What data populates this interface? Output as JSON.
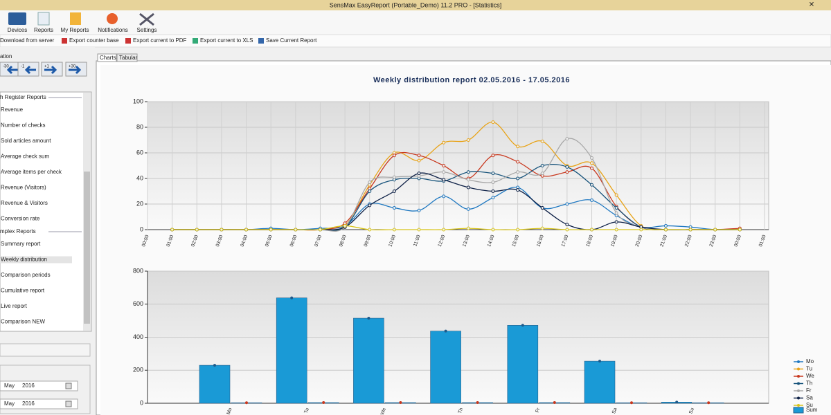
{
  "window": {
    "title": "SensMax EasyReport (Portable_Demo) 11.2 PRO - [Statistics]"
  },
  "toolbar": {
    "buttons": [
      "Devices",
      "Reports",
      "My Reports",
      "Notifications",
      "Settings"
    ]
  },
  "actions": [
    "Download from server",
    "Export counter base",
    "Export current to PDF",
    "Export current to XLS",
    "Save Current Report"
  ],
  "sidebar": {
    "section": "ation",
    "nav_buttons": [
      "-30",
      "-1",
      "+1",
      "+30"
    ],
    "groups": [
      {
        "title": "h Register Reports",
        "items": [
          "Revenue",
          "Number of checks",
          "Sold articles amount",
          "Average check sum",
          "Average items per check",
          "Revenue (Visitors)",
          "Revenue & Visitors",
          "Conversion rate"
        ]
      },
      {
        "title": "mplex Reports",
        "items": [
          "Summary report",
          "Weekly distribution",
          "Comparison periods",
          "Cumulative report",
          "Live report",
          "Comparison NEW"
        ]
      }
    ],
    "dates": [
      {
        "month": "May",
        "year": "2016"
      },
      {
        "month": "May",
        "year": "2016"
      }
    ]
  },
  "tabs": [
    "Charts",
    "Tabular"
  ],
  "chart_data": [
    {
      "type": "line",
      "title": "Weekly distribution report 02.05.2016 - 17.05.2016",
      "categories": [
        "00:00",
        "01:00",
        "02:00",
        "03:00",
        "04:00",
        "05:00",
        "06:00",
        "07:00",
        "08:00",
        "09:00",
        "10:00",
        "11:00",
        "12:00",
        "13:00",
        "14:00",
        "15:00",
        "16:00",
        "17:00",
        "18:00",
        "19:00",
        "20:00",
        "21:00",
        "22:00",
        "23:00",
        "00:00",
        "01:00"
      ],
      "series": [
        {
          "name": "Mo",
          "color": "#1f78c1",
          "values": [
            null,
            0,
            0,
            0,
            0,
            1,
            0,
            1,
            3,
            20,
            17,
            15,
            26,
            16,
            25,
            33,
            17,
            20,
            23,
            11,
            2,
            3,
            2,
            0,
            0,
            null
          ]
        },
        {
          "name": "Tu",
          "color": "#e8a317",
          "values": [
            null,
            0,
            0,
            0,
            0,
            0,
            0,
            0,
            3,
            35,
            60,
            54,
            68,
            70,
            84,
            65,
            69,
            50,
            52,
            27,
            3,
            0,
            0,
            0,
            0,
            null
          ]
        },
        {
          "name": "We",
          "color": "#c8381e",
          "values": [
            null,
            0,
            0,
            0,
            0,
            0,
            0,
            0,
            5,
            32,
            58,
            58,
            50,
            40,
            58,
            53,
            42,
            45,
            48,
            18,
            2,
            0,
            0,
            0,
            1,
            null
          ]
        },
        {
          "name": "Th",
          "color": "#15527a",
          "values": [
            null,
            0,
            0,
            0,
            0,
            0,
            0,
            0,
            2,
            30,
            39,
            40,
            38,
            45,
            44,
            40,
            50,
            49,
            35,
            17,
            2,
            0,
            0,
            0,
            0,
            null
          ]
        },
        {
          "name": "Fr",
          "color": "#a8a8a8",
          "values": [
            null,
            0,
            0,
            0,
            0,
            0,
            0,
            0,
            2,
            37,
            41,
            42,
            45,
            39,
            37,
            45,
            44,
            71,
            56,
            13,
            2,
            0,
            0,
            0,
            0,
            null
          ]
        },
        {
          "name": "Sa",
          "color": "#0c1f45",
          "values": [
            null,
            0,
            0,
            0,
            0,
            0,
            0,
            0,
            2,
            19,
            30,
            44,
            39,
            33,
            30,
            31,
            17,
            4,
            0,
            6,
            2,
            0,
            0,
            0,
            0,
            null
          ]
        },
        {
          "name": "Su",
          "color": "#d8c41a",
          "values": [
            null,
            0,
            0,
            0,
            0,
            0,
            0,
            0,
            3,
            0,
            0,
            0,
            0,
            1,
            0,
            0,
            1,
            0,
            0,
            0,
            0,
            0,
            0,
            0,
            0,
            null
          ]
        }
      ],
      "ylim": [
        0,
        100
      ],
      "yticks": [
        0,
        20,
        40,
        60,
        80,
        100
      ],
      "grid": true
    },
    {
      "type": "bar",
      "categories": [
        "Mo",
        "Tu",
        "We",
        "Th",
        "Fr",
        "Sa",
        "Su"
      ],
      "series": [
        {
          "name": "Sum",
          "color": "#1a9ad6",
          "marker_color": "#1f5a8a",
          "values": [
            230,
            638,
            515,
            437,
            472,
            255,
            7
          ]
        },
        {
          "color": "#1a9ad6",
          "marker_color": "#c8381e",
          "values": [
            3,
            4,
            4,
            4,
            4,
            3,
            3
          ]
        }
      ],
      "ylim": [
        0,
        800
      ],
      "yticks": [
        0,
        200,
        400,
        600,
        800
      ],
      "grid": true
    }
  ]
}
